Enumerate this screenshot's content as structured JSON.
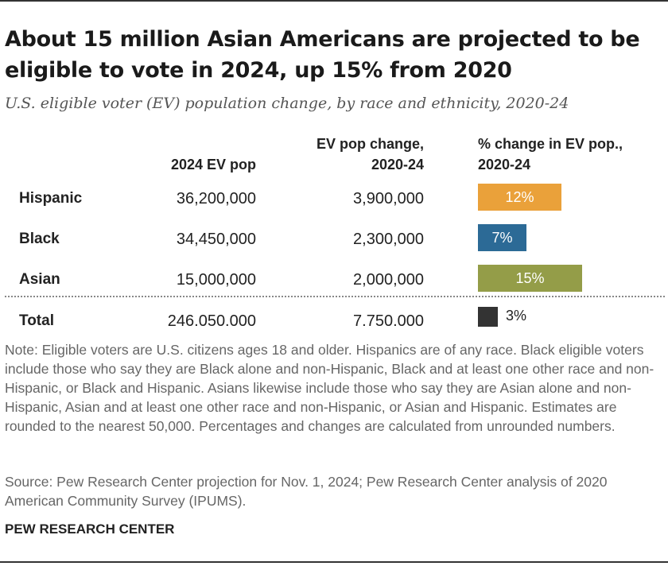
{
  "title": "About 15 million Asian Americans are projected to be eligible to vote in 2024, up 15% from 2020",
  "subtitle": "U.S. eligible voter (EV) population change, by race and ethnicity, 2020-24",
  "columns": {
    "pop": "2024 EV pop",
    "change_line1": "EV pop change,",
    "change_line2": "2020-24",
    "pct_line1": "% change in EV pop.,",
    "pct_line2": "2020-24"
  },
  "chart_data": {
    "type": "bar",
    "categories": [
      "Hispanic",
      "Black",
      "Asian",
      "Total"
    ],
    "values": [
      12,
      7,
      15,
      3
    ],
    "value_labels": [
      "12%",
      "7%",
      "15%",
      "3%"
    ],
    "colors": [
      "#eaa13a",
      "#2c6a96",
      "#949d48",
      "#333333"
    ],
    "ev_pop_2024": [
      "36,200,000",
      "34,450,000",
      "15,000,000",
      "246.050.000"
    ],
    "ev_pop_change": [
      "3,900,000",
      "2,300,000",
      "2,000,000",
      "7.750.000"
    ],
    "xlim": [
      0,
      15
    ]
  },
  "note": "Note: Eligible voters are U.S. citizens ages 18 and older. Hispanics are of any race. Black eligible voters include those who say they are Black alone and non-Hispanic, Black and at least one other race and non-Hispanic, or Black and Hispanic. Asians likewise include those who say they are Asian alone and non-Hispanic, Asian and at least one other race and non-Hispanic, or Asian and Hispanic. Estimates are rounded to the nearest 50,000. Percentages and changes are calculated from unrounded numbers.",
  "source": "Source: Pew Research Center projection for Nov. 1, 2024; Pew Research Center analysis of 2020 American Community Survey (IPUMS).",
  "brand": "PEW RESEARCH CENTER"
}
